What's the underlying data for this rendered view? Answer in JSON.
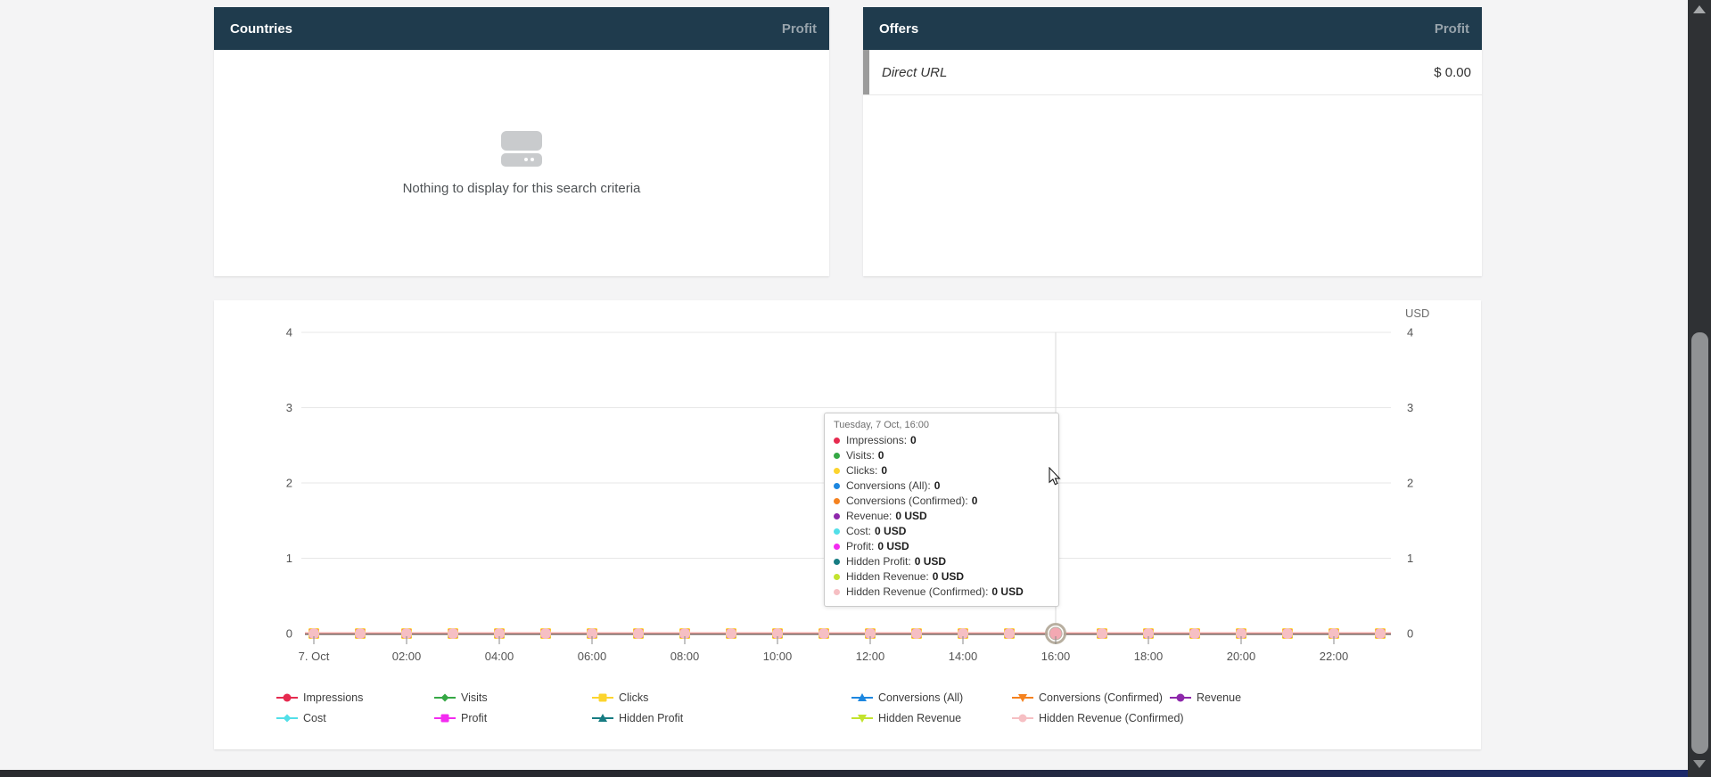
{
  "panels": {
    "countries": {
      "title": "Countries",
      "metric": "Profit",
      "empty_text": "Nothing to display for this search criteria"
    },
    "offers": {
      "title": "Offers",
      "metric": "Profit",
      "rows": [
        {
          "name": "Direct URL",
          "value": "$ 0.00"
        }
      ]
    }
  },
  "tooltip": {
    "title": "Tuesday, 7 Oct, 16:00",
    "items": [
      {
        "label": "Impressions",
        "value": "0",
        "color": "#e62a4f"
      },
      {
        "label": "Visits",
        "value": "0",
        "color": "#35a845"
      },
      {
        "label": "Clicks",
        "value": "0",
        "color": "#fcd42e"
      },
      {
        "label": "Conversions (All)",
        "value": "0",
        "color": "#1d87e0"
      },
      {
        "label": "Conversions (Confirmed)",
        "value": "0",
        "color": "#f5821f"
      },
      {
        "label": "Revenue",
        "value": "0 USD",
        "color": "#8e28ab"
      },
      {
        "label": "Cost",
        "value": "0 USD",
        "color": "#52dfe8"
      },
      {
        "label": "Profit",
        "value": "0 USD",
        "color": "#f32bf0"
      },
      {
        "label": "Hidden Profit",
        "value": "0 USD",
        "color": "#177c82"
      },
      {
        "label": "Hidden Revenue",
        "value": "0 USD",
        "color": "#c3e32e"
      },
      {
        "label": "Hidden Revenue (Confirmed)",
        "value": "0 USD",
        "color": "#f6bfc3"
      }
    ]
  },
  "chart_data": {
    "type": "line",
    "unit_label": "USD",
    "ylim": [
      0,
      4
    ],
    "yticks": [
      4,
      3,
      2,
      1,
      0
    ],
    "grid": true,
    "legend_position": "bottom",
    "num_points": 24,
    "points_per_label": 2,
    "x_labels": [
      "7. Oct",
      "02:00",
      "04:00",
      "06:00",
      "08:00",
      "10:00",
      "12:00",
      "14:00",
      "16:00",
      "18:00",
      "20:00",
      "22:00"
    ],
    "hover_index": 16,
    "series": [
      {
        "name": "Impressions",
        "color": "#e62a4f",
        "marker": "circle",
        "values": [
          0,
          0,
          0,
          0,
          0,
          0,
          0,
          0,
          0,
          0,
          0,
          0,
          0,
          0,
          0,
          0,
          0,
          0,
          0,
          0,
          0,
          0,
          0,
          0
        ]
      },
      {
        "name": "Visits",
        "color": "#35a845",
        "marker": "diamond",
        "values": [
          0,
          0,
          0,
          0,
          0,
          0,
          0,
          0,
          0,
          0,
          0,
          0,
          0,
          0,
          0,
          0,
          0,
          0,
          0,
          0,
          0,
          0,
          0,
          0
        ]
      },
      {
        "name": "Clicks",
        "color": "#fcd42e",
        "marker": "square",
        "values": [
          0,
          0,
          0,
          0,
          0,
          0,
          0,
          0,
          0,
          0,
          0,
          0,
          0,
          0,
          0,
          0,
          0,
          0,
          0,
          0,
          0,
          0,
          0,
          0
        ]
      },
      {
        "name": "Conversions (All)",
        "color": "#1d87e0",
        "marker": "triangle-up",
        "values": [
          0,
          0,
          0,
          0,
          0,
          0,
          0,
          0,
          0,
          0,
          0,
          0,
          0,
          0,
          0,
          0,
          0,
          0,
          0,
          0,
          0,
          0,
          0,
          0
        ]
      },
      {
        "name": "Conversions (Confirmed)",
        "color": "#f5821f",
        "marker": "triangle-down",
        "values": [
          0,
          0,
          0,
          0,
          0,
          0,
          0,
          0,
          0,
          0,
          0,
          0,
          0,
          0,
          0,
          0,
          0,
          0,
          0,
          0,
          0,
          0,
          0,
          0
        ]
      },
      {
        "name": "Revenue",
        "color": "#8e28ab",
        "marker": "circle",
        "values": [
          0,
          0,
          0,
          0,
          0,
          0,
          0,
          0,
          0,
          0,
          0,
          0,
          0,
          0,
          0,
          0,
          0,
          0,
          0,
          0,
          0,
          0,
          0,
          0
        ]
      },
      {
        "name": "Cost",
        "color": "#52dfe8",
        "marker": "diamond",
        "values": [
          0,
          0,
          0,
          0,
          0,
          0,
          0,
          0,
          0,
          0,
          0,
          0,
          0,
          0,
          0,
          0,
          0,
          0,
          0,
          0,
          0,
          0,
          0,
          0
        ]
      },
      {
        "name": "Profit",
        "color": "#f32bf0",
        "marker": "square",
        "values": [
          0,
          0,
          0,
          0,
          0,
          0,
          0,
          0,
          0,
          0,
          0,
          0,
          0,
          0,
          0,
          0,
          0,
          0,
          0,
          0,
          0,
          0,
          0,
          0
        ]
      },
      {
        "name": "Hidden Profit",
        "color": "#177c82",
        "marker": "triangle-up",
        "values": [
          0,
          0,
          0,
          0,
          0,
          0,
          0,
          0,
          0,
          0,
          0,
          0,
          0,
          0,
          0,
          0,
          0,
          0,
          0,
          0,
          0,
          0,
          0,
          0
        ]
      },
      {
        "name": "Hidden Revenue",
        "color": "#c3e32e",
        "marker": "triangle-down",
        "values": [
          0,
          0,
          0,
          0,
          0,
          0,
          0,
          0,
          0,
          0,
          0,
          0,
          0,
          0,
          0,
          0,
          0,
          0,
          0,
          0,
          0,
          0,
          0,
          0
        ]
      },
      {
        "name": "Hidden Revenue (Confirmed)",
        "color": "#f6bfc3",
        "marker": "circle",
        "values": [
          0,
          0,
          0,
          0,
          0,
          0,
          0,
          0,
          0,
          0,
          0,
          0,
          0,
          0,
          0,
          0,
          0,
          0,
          0,
          0,
          0,
          0,
          0,
          0
        ]
      }
    ]
  }
}
